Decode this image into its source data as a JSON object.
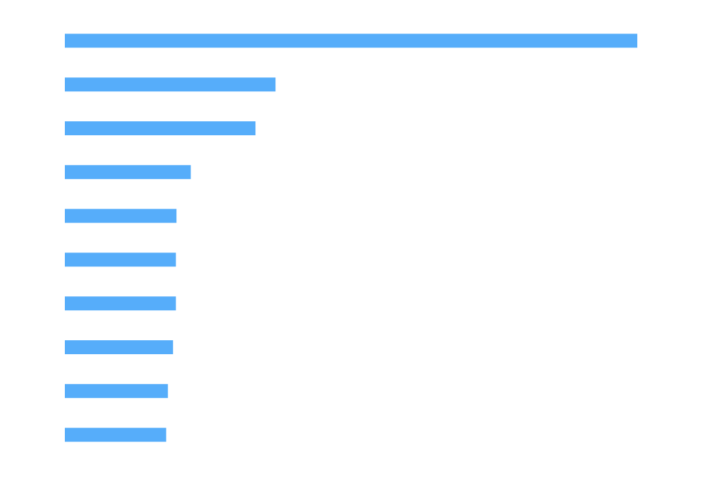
{
  "chart_data": {
    "type": "barh",
    "categories": [
      null,
      null,
      null,
      null,
      null,
      null,
      null,
      null,
      null,
      null
    ],
    "values": [
      100,
      36.8,
      33.3,
      22,
      19.5,
      19.4,
      19.4,
      18.9,
      18,
      17.7
    ],
    "color": "#56adfa",
    "xlim": [
      0,
      100
    ]
  }
}
